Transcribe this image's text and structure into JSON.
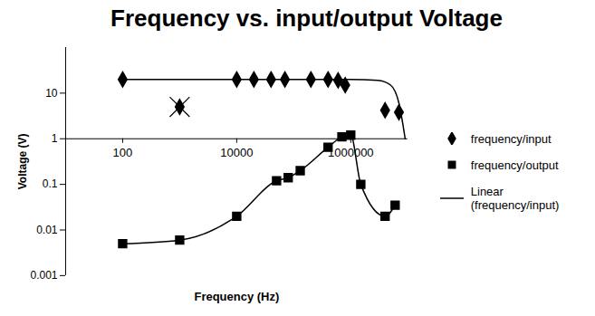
{
  "chart_data": {
    "type": "scatter",
    "title": "Frequency vs. input/output Voltage",
    "x_label": "Frequency (Hz)",
    "y_label": "Voltage (V)",
    "log": true,
    "xlim": [
      10,
      10000000
    ],
    "xticks": [
      100,
      10000,
      1000000
    ],
    "ylim": [
      0.001,
      100
    ],
    "yticks": [
      0.001,
      0.01,
      0.1,
      1,
      10
    ],
    "x_axis_at": 1,
    "legend": "right",
    "series": [
      {
        "name": "frequency/input",
        "type": "scatter",
        "marker": "diamond",
        "color": "#000000",
        "x": [
          100,
          10000,
          20000,
          40000,
          70000,
          200000,
          400000,
          600000,
          800000,
          4000000,
          7000000
        ],
        "values": [
          20,
          20,
          20,
          20,
          20,
          20,
          20,
          19,
          15,
          4.2,
          3.8
        ],
        "excluded": {
          "x": [
            1000
          ],
          "values": [
            5
          ],
          "marker": "times"
        }
      },
      {
        "name": "frequency/output",
        "type": "line",
        "marker": "square",
        "line_style": "smooth",
        "color": "#000000",
        "x": [
          100,
          1000,
          10000,
          50000,
          80000,
          130000,
          400000,
          700000,
          1000000,
          1500000,
          4000000,
          6000000
        ],
        "values": [
          0.005,
          0.006,
          0.02,
          0.12,
          0.14,
          0.2,
          0.65,
          1.1,
          1.2,
          0.1,
          0.02,
          0.035
        ]
      },
      {
        "name": "Linear (frequency/input)",
        "type": "line",
        "marker": "none",
        "line_style": "smooth",
        "color": "#000000",
        "x": [
          100,
          1000000,
          3000000,
          5000000,
          7000000,
          9000000
        ],
        "values": [
          20,
          20,
          19,
          15,
          6,
          1
        ]
      }
    ]
  }
}
